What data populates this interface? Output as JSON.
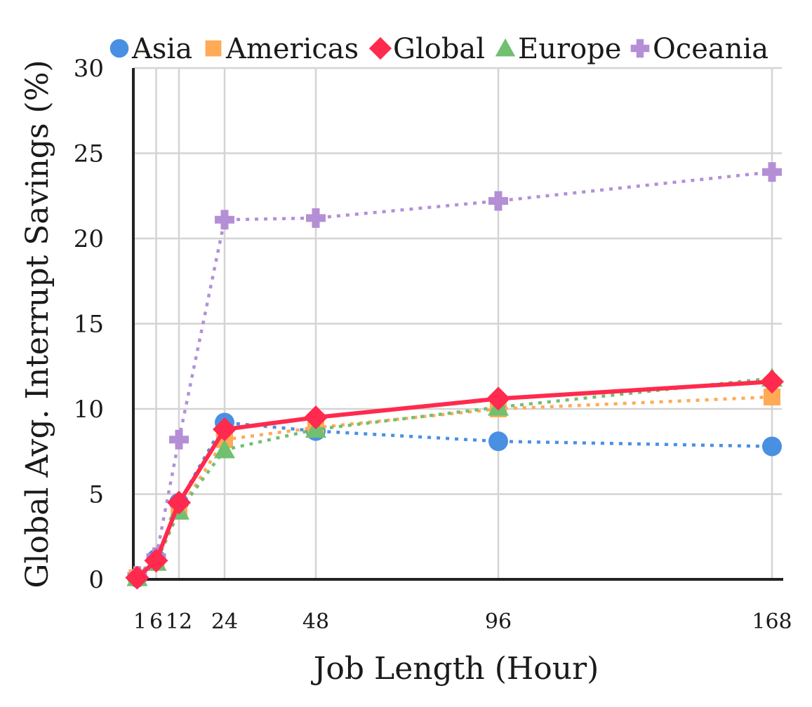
{
  "chart_data": {
    "type": "line",
    "title": "",
    "xlabel": "Job Length (Hour)",
    "ylabel": "Global Avg. Interrupt Savings (%)",
    "x": [
      1,
      6,
      12,
      24,
      48,
      96,
      168
    ],
    "x_tick_labels": [
      "1",
      "6",
      "12",
      "24",
      "48",
      "96",
      "168"
    ],
    "y_ticks": [
      0,
      5,
      10,
      15,
      20,
      25,
      30
    ],
    "xlim": [
      0,
      168
    ],
    "ylim": [
      0,
      30
    ],
    "grid": true,
    "legend_position": "top",
    "series": [
      {
        "name": "Asia",
        "values": [
          0.1,
          1.2,
          4.5,
          9.2,
          8.7,
          8.1,
          7.8
        ],
        "color": "#4a90e2",
        "marker": "circle",
        "line": "dotted"
      },
      {
        "name": "Americas",
        "values": [
          0.1,
          1.0,
          4.0,
          8.2,
          8.9,
          10.0,
          10.7
        ],
        "color": "#ffaa55",
        "marker": "square",
        "line": "dotted"
      },
      {
        "name": "Global",
        "values": [
          0.1,
          1.1,
          4.5,
          8.8,
          9.5,
          10.6,
          11.6
        ],
        "color": "#ff2a4d",
        "marker": "diamond",
        "line": "solid"
      },
      {
        "name": "Europe",
        "values": [
          0.1,
          1.0,
          4.0,
          7.6,
          8.8,
          10.1,
          11.8
        ],
        "color": "#70c070",
        "marker": "triangle",
        "line": "dotted"
      },
      {
        "name": "Oceania",
        "values": [
          0.2,
          1.3,
          8.2,
          21.1,
          21.2,
          22.2,
          23.9
        ],
        "color": "#b48fd6",
        "marker": "plus",
        "line": "dotted"
      }
    ]
  }
}
